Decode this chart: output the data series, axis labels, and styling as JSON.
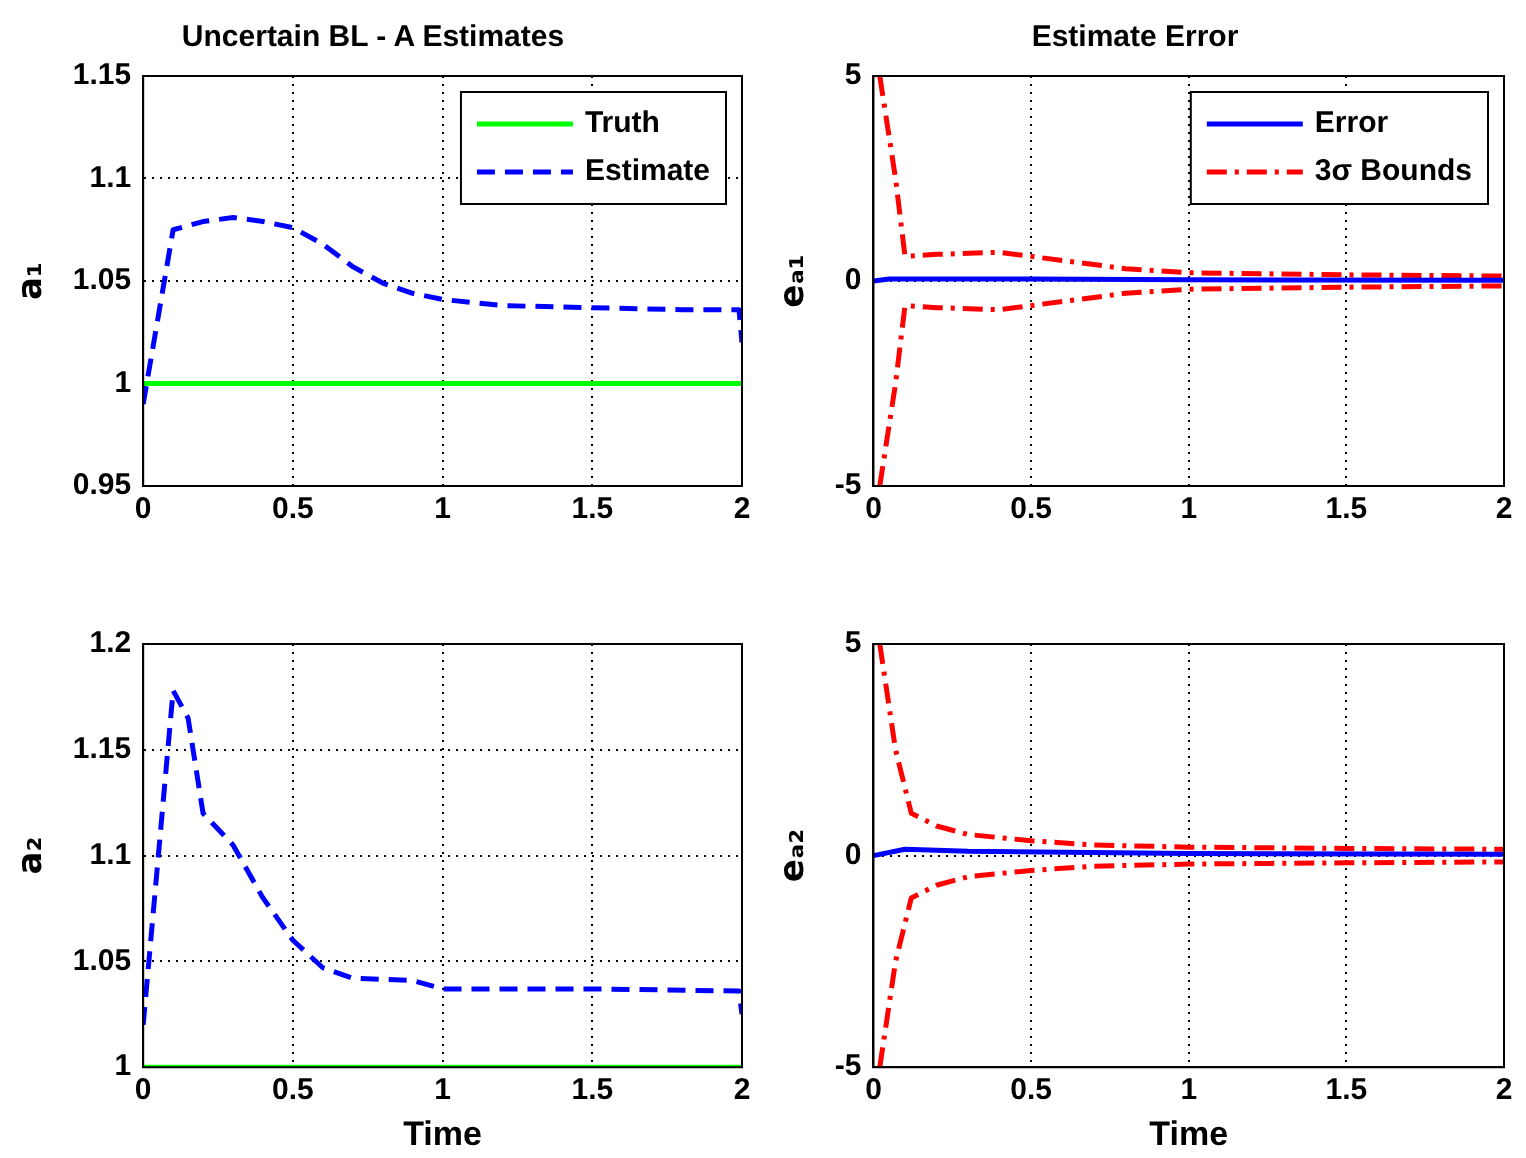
{
  "chart_data": [
    {
      "type": "line",
      "title": "Uncertain BL - A Estimates",
      "ylabel": "a₁",
      "xlim": [
        0,
        2
      ],
      "xticks": [
        0,
        0.5,
        1,
        1.5,
        2
      ],
      "ylim": [
        0.95,
        1.15
      ],
      "yticks": [
        0.95,
        1,
        1.05,
        1.1,
        1.15
      ],
      "grid": true,
      "legend": "top right",
      "marker": "none",
      "series": [
        {
          "name": "Truth",
          "color": "#00ff00",
          "line_style": "solid",
          "x": [
            0,
            2
          ],
          "values": [
            1,
            1
          ]
        },
        {
          "name": "Estimate",
          "color": "#0000ff",
          "line_style": "dashed",
          "x": [
            0,
            0.1,
            0.2,
            0.3,
            0.4,
            0.5,
            0.6,
            0.7,
            0.8,
            0.9,
            1,
            1.2,
            1.5,
            1.8,
            1.99,
            2
          ],
          "values": [
            0.99,
            1.075,
            1.079,
            1.081,
            1.079,
            1.076,
            1.068,
            1.057,
            1.049,
            1.044,
            1.041,
            1.038,
            1.037,
            1.036,
            1.036,
            1.02
          ]
        }
      ]
    },
    {
      "type": "line",
      "title": "Estimate Error",
      "ylabel": "eₐ₁",
      "xlim": [
        0,
        2
      ],
      "xticks": [
        0,
        0.5,
        1,
        1.5,
        2
      ],
      "ylim": [
        -5,
        5
      ],
      "yticks": [
        -5,
        0,
        5
      ],
      "grid": true,
      "legend": "top right",
      "marker": "none",
      "series": [
        {
          "name": "Error",
          "color": "#0000ff",
          "line_style": "solid",
          "x": [
            0,
            0.05,
            0.5,
            1,
            2
          ],
          "values": [
            0,
            0.05,
            0.05,
            0.03,
            0.02
          ]
        },
        {
          "name": "3σ Bounds",
          "color": "#ff0000",
          "line_style": "dashdot",
          "x": [
            0.02,
            0.05,
            0.07,
            0.1,
            0.2,
            0.4,
            0.6,
            0.8,
            1,
            1.5,
            2
          ],
          "values": [
            5,
            3.5,
            2.5,
            0.6,
            0.65,
            0.7,
            0.5,
            0.3,
            0.2,
            0.15,
            0.12
          ]
        },
        {
          "color": "#ff0000",
          "line_style": "dashdot",
          "x": [
            0.02,
            0.05,
            0.07,
            0.1,
            0.2,
            0.4,
            0.6,
            0.8,
            1,
            1.5,
            2
          ],
          "values": [
            -5,
            -3.5,
            -2.5,
            -0.6,
            -0.65,
            -0.7,
            -0.5,
            -0.3,
            -0.2,
            -0.15,
            -0.12
          ]
        }
      ]
    },
    {
      "type": "line",
      "xlabel": "Time",
      "ylabel": "a₂",
      "xlim": [
        0,
        2
      ],
      "xticks": [
        0,
        0.5,
        1,
        1.5,
        2
      ],
      "ylim": [
        1,
        1.2
      ],
      "yticks": [
        1,
        1.05,
        1.1,
        1.15,
        1.2
      ],
      "grid": true,
      "marker": "none",
      "series": [
        {
          "color": "#00ff00",
          "line_style": "solid",
          "x": [
            0,
            2
          ],
          "values": [
            1,
            1
          ]
        },
        {
          "color": "#0000ff",
          "line_style": "dashed",
          "x": [
            0,
            0.1,
            0.15,
            0.2,
            0.3,
            0.4,
            0.5,
            0.6,
            0.7,
            0.9,
            1,
            1.5,
            1.99,
            2
          ],
          "values": [
            1.02,
            1.178,
            1.165,
            1.12,
            1.105,
            1.08,
            1.06,
            1.047,
            1.042,
            1.041,
            1.037,
            1.037,
            1.036,
            1.025
          ]
        }
      ]
    },
    {
      "type": "line",
      "xlabel": "Time",
      "ylabel": "eₐ₂",
      "xlim": [
        0,
        2
      ],
      "xticks": [
        0,
        0.5,
        1,
        1.5,
        2
      ],
      "ylim": [
        -5,
        5
      ],
      "yticks": [
        -5,
        0,
        5
      ],
      "grid": true,
      "marker": "none",
      "series": [
        {
          "color": "#0000ff",
          "line_style": "solid",
          "x": [
            0,
            0.1,
            0.3,
            1,
            2
          ],
          "values": [
            0,
            0.15,
            0.1,
            0.05,
            0.03
          ]
        },
        {
          "color": "#ff0000",
          "line_style": "dashdot",
          "x": [
            0.02,
            0.05,
            0.07,
            0.12,
            0.2,
            0.3,
            0.5,
            0.7,
            1,
            1.5,
            2
          ],
          "values": [
            5,
            3.5,
            2.5,
            1,
            0.7,
            0.5,
            0.35,
            0.25,
            0.2,
            0.17,
            0.15
          ]
        },
        {
          "color": "#ff0000",
          "line_style": "dashdot",
          "x": [
            0.02,
            0.05,
            0.07,
            0.12,
            0.2,
            0.3,
            0.5,
            0.7,
            1,
            1.5,
            2
          ],
          "values": [
            -5,
            -3.5,
            -2.5,
            -1,
            -0.7,
            -0.5,
            -0.35,
            -0.25,
            -0.2,
            -0.17,
            -0.15
          ]
        }
      ]
    }
  ]
}
